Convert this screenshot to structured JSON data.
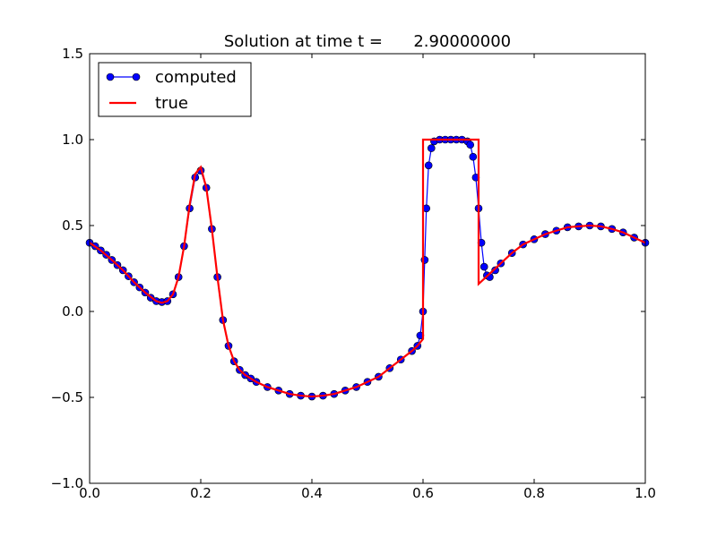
{
  "chart_data": {
    "type": "line",
    "title": "Solution at time t =      2.90000000",
    "xlabel": "",
    "ylabel": "",
    "xlim": [
      0.0,
      1.0
    ],
    "ylim": [
      -1.0,
      1.5
    ],
    "x_ticks": [
      0.0,
      0.2,
      0.4,
      0.6,
      0.8,
      1.0
    ],
    "x_tick_labels": [
      "0.0",
      "0.2",
      "0.4",
      "0.6",
      "0.8",
      "1.0"
    ],
    "y_ticks": [
      -1.0,
      -0.5,
      0.0,
      0.5,
      1.0,
      1.5
    ],
    "y_tick_labels": [
      "−1.0",
      "−0.5",
      "0.0",
      "0.5",
      "1.0",
      "1.5"
    ],
    "grid": false,
    "legend": {
      "position": "top-left",
      "entries": [
        "computed",
        "true"
      ]
    },
    "series": [
      {
        "name": "computed",
        "style": "line-with-circle-markers",
        "color": "#0000ff",
        "marker_edge": "#000000",
        "x": [
          0.0,
          0.01,
          0.02,
          0.03,
          0.04,
          0.05,
          0.06,
          0.07,
          0.08,
          0.09,
          0.1,
          0.11,
          0.12,
          0.13,
          0.14,
          0.15,
          0.16,
          0.17,
          0.18,
          0.19,
          0.2,
          0.21,
          0.22,
          0.23,
          0.24,
          0.25,
          0.26,
          0.27,
          0.28,
          0.29,
          0.3,
          0.32,
          0.34,
          0.36,
          0.38,
          0.4,
          0.42,
          0.44,
          0.46,
          0.48,
          0.5,
          0.52,
          0.54,
          0.56,
          0.58,
          0.59,
          0.595,
          0.6,
          0.603,
          0.606,
          0.61,
          0.615,
          0.62,
          0.63,
          0.64,
          0.65,
          0.66,
          0.67,
          0.68,
          0.685,
          0.69,
          0.695,
          0.7,
          0.705,
          0.71,
          0.715,
          0.72,
          0.73,
          0.74,
          0.76,
          0.78,
          0.8,
          0.82,
          0.84,
          0.86,
          0.88,
          0.9,
          0.92,
          0.94,
          0.96,
          0.98,
          1.0
        ],
        "y": [
          0.4,
          0.38,
          0.355,
          0.33,
          0.3,
          0.27,
          0.24,
          0.205,
          0.17,
          0.14,
          0.11,
          0.08,
          0.06,
          0.055,
          0.06,
          0.1,
          0.2,
          0.38,
          0.6,
          0.78,
          0.82,
          0.72,
          0.48,
          0.2,
          -0.05,
          -0.2,
          -0.29,
          -0.34,
          -0.37,
          -0.39,
          -0.41,
          -0.44,
          -0.46,
          -0.48,
          -0.49,
          -0.495,
          -0.49,
          -0.48,
          -0.46,
          -0.44,
          -0.41,
          -0.38,
          -0.33,
          -0.28,
          -0.23,
          -0.2,
          -0.14,
          0.0,
          0.3,
          0.6,
          0.85,
          0.95,
          0.99,
          1.0,
          1.0,
          1.0,
          1.0,
          1.0,
          0.99,
          0.97,
          0.9,
          0.78,
          0.6,
          0.4,
          0.26,
          0.21,
          0.2,
          0.24,
          0.28,
          0.34,
          0.39,
          0.42,
          0.45,
          0.47,
          0.49,
          0.495,
          0.5,
          0.495,
          0.48,
          0.46,
          0.43,
          0.4
        ]
      },
      {
        "name": "true",
        "style": "line",
        "color": "#ff0000",
        "x": [
          0.0,
          0.02,
          0.04,
          0.06,
          0.08,
          0.1,
          0.12,
          0.13,
          0.14,
          0.15,
          0.16,
          0.17,
          0.18,
          0.19,
          0.2,
          0.21,
          0.22,
          0.23,
          0.24,
          0.25,
          0.26,
          0.27,
          0.28,
          0.29,
          0.3,
          0.32,
          0.34,
          0.36,
          0.38,
          0.4,
          0.42,
          0.44,
          0.46,
          0.48,
          0.5,
          0.52,
          0.54,
          0.56,
          0.58,
          0.59,
          0.6,
          0.6,
          0.7,
          0.7,
          0.72,
          0.74,
          0.76,
          0.78,
          0.8,
          0.82,
          0.84,
          0.86,
          0.88,
          0.9,
          0.92,
          0.94,
          0.96,
          0.98,
          1.0
        ],
        "y": [
          0.4,
          0.355,
          0.3,
          0.24,
          0.17,
          0.11,
          0.06,
          0.05,
          0.06,
          0.1,
          0.2,
          0.38,
          0.62,
          0.8,
          0.84,
          0.72,
          0.48,
          0.2,
          -0.05,
          -0.2,
          -0.29,
          -0.34,
          -0.37,
          -0.39,
          -0.41,
          -0.44,
          -0.46,
          -0.48,
          -0.49,
          -0.495,
          -0.49,
          -0.48,
          -0.46,
          -0.44,
          -0.41,
          -0.38,
          -0.33,
          -0.28,
          -0.23,
          -0.2,
          -0.16,
          1.0,
          1.0,
          0.16,
          0.22,
          0.28,
          0.34,
          0.39,
          0.42,
          0.45,
          0.47,
          0.49,
          0.495,
          0.5,
          0.495,
          0.48,
          0.46,
          0.43,
          0.4
        ]
      }
    ]
  }
}
